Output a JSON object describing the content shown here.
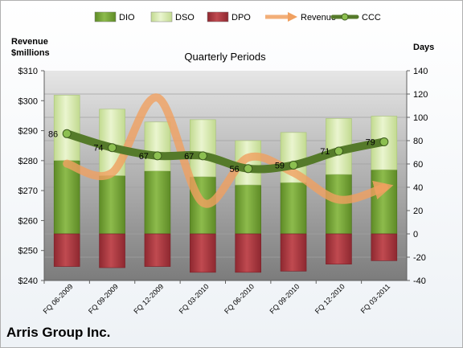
{
  "company": "Arris Group Inc.",
  "chart_data": {
    "type": "bar",
    "title": "Quarterly Periods",
    "left_axis_label": [
      "Revenue",
      "$millions"
    ],
    "right_axis_label": "Days",
    "left_ticks": [
      "$240",
      "$250",
      "$260",
      "$270",
      "$280",
      "$290",
      "$300",
      "$310"
    ],
    "right_ticks": [
      "-40",
      "-20",
      "0",
      "20",
      "40",
      "60",
      "80",
      "100",
      "120",
      "140"
    ],
    "left_range": [
      240,
      310
    ],
    "right_range": [
      -40,
      140
    ],
    "categories": [
      "FQ 06-2009",
      "FQ 09-2009",
      "FQ 12-2009",
      "FQ 03-2010",
      "FQ 06-2010",
      "FQ 09-2010",
      "FQ 12-2010",
      "FQ 03-2011"
    ],
    "legend": [
      "DIO",
      "DSO",
      "DPO",
      "Revenue",
      "CCC"
    ],
    "legend_position": "top",
    "series": [
      {
        "name": "DIO",
        "axis": "right",
        "values": [
          63,
          50,
          54,
          49,
          42,
          44,
          51,
          55
        ],
        "color": "#7aa83c"
      },
      {
        "name": "DSO",
        "axis": "right",
        "values": [
          56,
          57,
          42,
          49,
          38,
          43,
          48,
          46
        ],
        "color": "#d8ebb0"
      },
      {
        "name": "DPO",
        "axis": "right",
        "values": [
          -28,
          -29,
          -28,
          -33,
          -33,
          -32,
          -26,
          -23
        ],
        "color": "#b03a40"
      },
      {
        "name": "Revenue",
        "axis": "left",
        "values": [
          279,
          276,
          301,
          266,
          281,
          276,
          267,
          271
        ],
        "color": "#f0a060"
      },
      {
        "name": "CCC",
        "axis": "right",
        "values": [
          86,
          74,
          67,
          67,
          56,
          59,
          71,
          79
        ],
        "color": "#557a2a"
      }
    ],
    "data_labels": [
      "86",
      "74",
      "67",
      "67",
      "56",
      "59",
      "71",
      "79"
    ],
    "grid": true
  }
}
